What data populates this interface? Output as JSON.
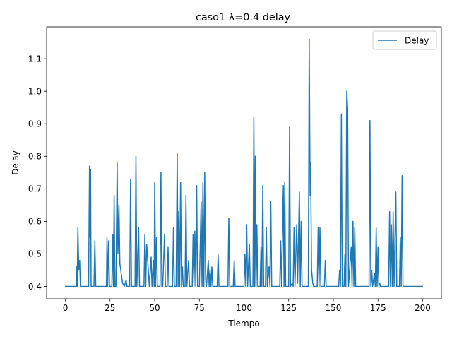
{
  "chart_data": {
    "type": "line",
    "title": "caso1 λ=0.4 delay",
    "xlabel": "Tiempo",
    "ylabel": "Delay",
    "xlim": [
      -10.5,
      210.5
    ],
    "ylim": [
      0.362,
      1.198
    ],
    "xticks": [
      0,
      25,
      50,
      75,
      100,
      125,
      150,
      175,
      200
    ],
    "yticks": [
      0.4,
      0.5,
      0.6,
      0.7,
      0.8,
      0.9,
      1.0,
      1.1
    ],
    "ytick_labels": [
      "0.4",
      "0.5",
      "0.6",
      "0.7",
      "0.8",
      "0.9",
      "1.0",
      "1.1"
    ],
    "grid": false,
    "legend_position": "top-right",
    "series": [
      {
        "name": "Delay",
        "color": "#1f77b4",
        "points": [
          [
            0,
            0.4
          ],
          [
            6,
            0.4
          ],
          [
            6.3,
            0.46
          ],
          [
            6.6,
            0.4
          ],
          [
            7,
            0.58
          ],
          [
            7.5,
            0.45
          ],
          [
            8,
            0.48
          ],
          [
            8.4,
            0.4
          ],
          [
            13,
            0.4
          ],
          [
            13.5,
            0.77
          ],
          [
            13.8,
            0.55
          ],
          [
            14.1,
            0.76
          ],
          [
            14.4,
            0.4
          ],
          [
            16,
            0.4
          ],
          [
            16.5,
            0.54
          ],
          [
            17,
            0.4
          ],
          [
            23,
            0.4
          ],
          [
            23.3,
            0.55
          ],
          [
            23.7,
            0.4
          ],
          [
            24.2,
            0.54
          ],
          [
            24.7,
            0.4
          ],
          [
            26,
            0.4
          ],
          [
            26.5,
            0.56
          ],
          [
            26.9,
            0.4
          ],
          [
            27.3,
            0.68
          ],
          [
            27.7,
            0.4
          ],
          [
            28.3,
            0.4
          ],
          [
            29,
            0.78
          ],
          [
            29.4,
            0.5
          ],
          [
            30,
            0.65
          ],
          [
            30.5,
            0.47
          ],
          [
            32,
            0.41
          ],
          [
            33,
            0.4
          ],
          [
            34,
            0.42
          ],
          [
            34.5,
            0.4
          ],
          [
            36,
            0.4
          ],
          [
            36.5,
            0.73
          ],
          [
            37,
            0.4
          ],
          [
            39,
            0.4
          ],
          [
            39.5,
            0.8
          ],
          [
            40,
            0.4
          ],
          [
            41,
            0.58
          ],
          [
            41.5,
            0.4
          ],
          [
            44,
            0.4
          ],
          [
            44.5,
            0.56
          ],
          [
            45,
            0.4
          ],
          [
            45.5,
            0.53
          ],
          [
            47,
            0.4
          ],
          [
            48,
            0.49
          ],
          [
            48.5,
            0.4
          ],
          [
            49.3,
            0.48
          ],
          [
            49.7,
            0.4
          ],
          [
            50,
            0.72
          ],
          [
            50.5,
            0.4
          ],
          [
            51,
            0.55
          ],
          [
            51.5,
            0.4
          ],
          [
            53,
            0.4
          ],
          [
            53.5,
            0.75
          ],
          [
            54,
            0.4
          ],
          [
            54.5,
            0.4
          ],
          [
            55.5,
            0.56
          ],
          [
            56,
            0.4
          ],
          [
            57,
            0.4
          ],
          [
            57.5,
            0.52
          ],
          [
            58,
            0.4
          ],
          [
            60,
            0.4
          ],
          [
            60.5,
            0.58
          ],
          [
            61,
            0.4
          ],
          [
            62,
            0.4
          ],
          [
            62.6,
            0.81
          ],
          [
            63.1,
            0.4
          ],
          [
            63.5,
            0.63
          ],
          [
            64,
            0.4
          ],
          [
            64.5,
            0.72
          ],
          [
            65,
            0.4
          ],
          [
            65.5,
            0.46
          ],
          [
            66,
            0.4
          ],
          [
            67,
            0.4
          ],
          [
            67.5,
            0.68
          ],
          [
            68,
            0.4
          ],
          [
            69,
            0.48
          ],
          [
            69.5,
            0.4
          ],
          [
            71,
            0.4
          ],
          [
            71.5,
            0.56
          ],
          [
            72,
            0.4
          ],
          [
            72.5,
            0.57
          ],
          [
            73,
            0.4
          ],
          [
            73.5,
            0.71
          ],
          [
            74,
            0.4
          ],
          [
            75,
            0.4
          ],
          [
            76,
            0.66
          ],
          [
            76.5,
            0.4
          ],
          [
            77,
            0.72
          ],
          [
            77.5,
            0.4
          ],
          [
            78,
            0.75
          ],
          [
            78.5,
            0.42
          ],
          [
            79,
            0.4
          ],
          [
            80,
            0.48
          ],
          [
            80.5,
            0.4
          ],
          [
            81,
            0.45
          ],
          [
            81.5,
            0.4
          ],
          [
            82,
            0.46
          ],
          [
            82.5,
            0.4
          ],
          [
            85,
            0.4
          ],
          [
            85.5,
            0.5
          ],
          [
            86,
            0.4
          ],
          [
            91,
            0.4
          ],
          [
            91.5,
            0.61
          ],
          [
            92,
            0.4
          ],
          [
            94,
            0.4
          ],
          [
            94.5,
            0.48
          ],
          [
            95,
            0.4
          ],
          [
            100,
            0.4
          ],
          [
            100.5,
            0.5
          ],
          [
            101,
            0.4
          ],
          [
            101.5,
            0.59
          ],
          [
            102,
            0.4
          ],
          [
            103,
            0.53
          ],
          [
            103.5,
            0.4
          ],
          [
            105,
            0.4
          ],
          [
            105.5,
            0.92
          ],
          [
            106,
            0.4
          ],
          [
            106.3,
            0.8
          ],
          [
            106.8,
            0.4
          ],
          [
            107.2,
            0.59
          ],
          [
            107.7,
            0.4
          ],
          [
            109,
            0.4
          ],
          [
            109.5,
            0.52
          ],
          [
            110,
            0.4
          ],
          [
            110.5,
            0.71
          ],
          [
            111,
            0.4
          ],
          [
            112,
            0.4
          ],
          [
            112.5,
            0.58
          ],
          [
            113,
            0.4
          ],
          [
            114,
            0.46
          ],
          [
            114.5,
            0.4
          ],
          [
            115,
            0.66
          ],
          [
            115.5,
            0.4
          ],
          [
            120,
            0.4
          ],
          [
            120.5,
            0.54
          ],
          [
            121,
            0.4
          ],
          [
            122,
            0.71
          ],
          [
            122.4,
            0.4
          ],
          [
            122.8,
            0.72
          ],
          [
            123.3,
            0.4
          ],
          [
            125,
            0.4
          ],
          [
            125.5,
            0.89
          ],
          [
            126,
            0.4
          ],
          [
            127,
            0.41
          ],
          [
            127.5,
            0.4
          ],
          [
            128,
            0.58
          ],
          [
            128.5,
            0.4
          ],
          [
            129.5,
            0.59
          ],
          [
            130,
            0.41
          ],
          [
            131,
            0.69
          ],
          [
            131.5,
            0.4
          ],
          [
            132,
            0.6
          ],
          [
            132.5,
            0.4
          ],
          [
            136,
            0.4
          ],
          [
            136.5,
            1.16
          ],
          [
            137,
            0.68
          ],
          [
            137.3,
            0.78
          ],
          [
            137.8,
            0.45
          ],
          [
            138.5,
            0.41
          ],
          [
            139,
            0.4
          ],
          [
            141,
            0.4
          ],
          [
            141.5,
            0.58
          ],
          [
            142,
            0.4
          ],
          [
            142.5,
            0.58
          ],
          [
            143,
            0.4
          ],
          [
            145,
            0.4
          ],
          [
            145.5,
            0.48
          ],
          [
            146,
            0.4
          ],
          [
            153,
            0.4
          ],
          [
            153.5,
            0.45
          ],
          [
            154,
            0.4
          ],
          [
            154.5,
            0.93
          ],
          [
            155,
            0.4
          ],
          [
            156,
            0.4
          ],
          [
            156.5,
            0.5
          ],
          [
            157,
            0.4
          ],
          [
            157.5,
            1.0
          ],
          [
            158,
            0.95
          ],
          [
            158.5,
            0.4
          ],
          [
            160,
            0.52
          ],
          [
            160.5,
            0.4
          ],
          [
            161,
            0.6
          ],
          [
            161.5,
            0.4
          ],
          [
            162,
            0.58
          ],
          [
            162.5,
            0.4
          ],
          [
            170,
            0.4
          ],
          [
            170.5,
            0.91
          ],
          [
            171,
            0.4
          ],
          [
            171.5,
            0.45
          ],
          [
            172,
            0.4
          ],
          [
            173,
            0.44
          ],
          [
            173.5,
            0.4
          ],
          [
            174,
            0.58
          ],
          [
            174.5,
            0.4
          ],
          [
            175,
            0.52
          ],
          [
            175.5,
            0.4
          ],
          [
            176,
            0.41
          ],
          [
            176.5,
            0.4
          ],
          [
            181,
            0.4
          ],
          [
            181.5,
            0.63
          ],
          [
            182,
            0.4
          ],
          [
            182.5,
            0.59
          ],
          [
            183,
            0.4
          ],
          [
            183.5,
            0.63
          ],
          [
            184,
            0.4
          ],
          [
            185,
            0.69
          ],
          [
            185.5,
            0.4
          ],
          [
            187,
            0.4
          ],
          [
            187.5,
            0.55
          ],
          [
            188,
            0.4
          ],
          [
            188.5,
            0.74
          ],
          [
            189,
            0.4
          ],
          [
            200,
            0.4
          ]
        ]
      }
    ]
  }
}
